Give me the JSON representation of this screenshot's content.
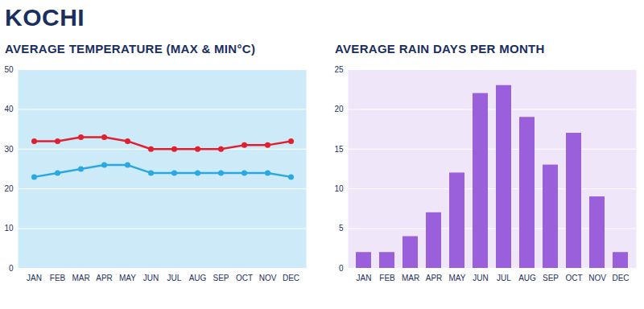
{
  "title": "KOCHI",
  "chart_data": [
    {
      "type": "line",
      "title": "AVERAGE TEMPERATURE (MAX & MIN°C)",
      "categories": [
        "JAN",
        "FEB",
        "MAR",
        "APR",
        "MAY",
        "JUN",
        "JUL",
        "AUG",
        "SEP",
        "OCT",
        "NOV",
        "DEC"
      ],
      "series": [
        {
          "color": "#e0202e",
          "marker": "circle",
          "values": [
            32,
            32,
            33,
            33,
            32,
            30,
            30,
            30,
            30,
            31,
            31,
            32
          ]
        },
        {
          "color": "#2aa8e0",
          "marker": "circle",
          "values": [
            23,
            24,
            25,
            26,
            26,
            24,
            24,
            24,
            24,
            24,
            24,
            23
          ]
        }
      ],
      "ylim": [
        0,
        50
      ],
      "yticks": [
        0,
        10,
        20,
        30,
        40,
        50
      ],
      "grid": true
    },
    {
      "type": "bar",
      "title": "AVERAGE RAIN DAYS PER MONTH",
      "categories": [
        "JAN",
        "FEB",
        "MAR",
        "APR",
        "MAY",
        "JUN",
        "JUL",
        "AUG",
        "SEP",
        "OCT",
        "NOV",
        "DEC"
      ],
      "values": [
        2,
        2,
        4,
        7,
        12,
        22,
        23,
        19,
        13,
        17,
        9,
        2
      ],
      "color": "#9a60dc",
      "ylim": [
        0,
        25
      ],
      "yticks": [
        0,
        5,
        10,
        15,
        20,
        25
      ],
      "grid": true
    }
  ]
}
